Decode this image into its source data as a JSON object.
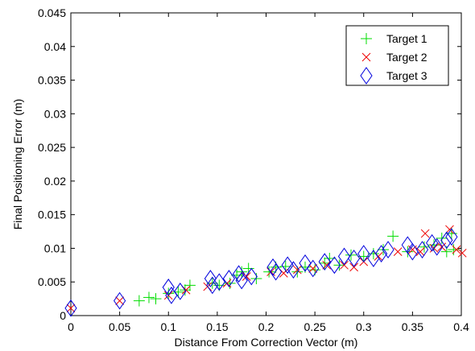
{
  "chart_data": {
    "type": "scatter",
    "xlabel": "Distance From Correction Vector (m)",
    "ylabel": "Final Positioning Error (m)",
    "xlim": [
      0,
      0.4
    ],
    "ylim": [
      0,
      0.045
    ],
    "x_ticks": [
      "0",
      "0.05",
      "0.1",
      "0.15",
      "0.2",
      "0.25",
      "0.3",
      "0.35",
      "0.4"
    ],
    "y_ticks": [
      "0",
      "0.005",
      "0.01",
      "0.015",
      "0.02",
      "0.025",
      "0.03",
      "0.035",
      "0.04",
      "0.045"
    ],
    "grid": false,
    "legend_position": "top-right",
    "series": [
      {
        "name": "Target 1",
        "marker": "plus",
        "color": "#00dd00",
        "points": [
          [
            0.07,
            0.0022
          ],
          [
            0.08,
            0.0027
          ],
          [
            0.087,
            0.0025
          ],
          [
            0.1,
            0.0033
          ],
          [
            0.11,
            0.0035
          ],
          [
            0.117,
            0.0038
          ],
          [
            0.122,
            0.0045
          ],
          [
            0.145,
            0.0048
          ],
          [
            0.152,
            0.0045
          ],
          [
            0.163,
            0.0048
          ],
          [
            0.17,
            0.006
          ],
          [
            0.175,
            0.0065
          ],
          [
            0.182,
            0.007
          ],
          [
            0.19,
            0.0055
          ],
          [
            0.203,
            0.0065
          ],
          [
            0.21,
            0.0072
          ],
          [
            0.22,
            0.0073
          ],
          [
            0.232,
            0.0065
          ],
          [
            0.24,
            0.0072
          ],
          [
            0.25,
            0.0068
          ],
          [
            0.26,
            0.0078
          ],
          [
            0.265,
            0.0085
          ],
          [
            0.275,
            0.0075
          ],
          [
            0.287,
            0.009
          ],
          [
            0.3,
            0.0088
          ],
          [
            0.31,
            0.0092
          ],
          [
            0.32,
            0.0098
          ],
          [
            0.33,
            0.0118
          ],
          [
            0.345,
            0.0095
          ],
          [
            0.362,
            0.0102
          ],
          [
            0.372,
            0.0105
          ],
          [
            0.38,
            0.0115
          ],
          [
            0.39,
            0.0122
          ],
          [
            0.385,
            0.0095
          ],
          [
            0.392,
            0.0098
          ]
        ]
      },
      {
        "name": "Target 2",
        "marker": "x",
        "color": "#ee0000",
        "points": [
          [
            0.0,
            0.0011
          ],
          [
            0.05,
            0.0022
          ],
          [
            0.1,
            0.003
          ],
          [
            0.118,
            0.0038
          ],
          [
            0.14,
            0.0043
          ],
          [
            0.16,
            0.0048
          ],
          [
            0.18,
            0.0058
          ],
          [
            0.205,
            0.0065
          ],
          [
            0.218,
            0.0063
          ],
          [
            0.232,
            0.0068
          ],
          [
            0.248,
            0.007
          ],
          [
            0.262,
            0.0075
          ],
          [
            0.28,
            0.0075
          ],
          [
            0.29,
            0.0072
          ],
          [
            0.3,
            0.008
          ],
          [
            0.315,
            0.0088
          ],
          [
            0.335,
            0.0095
          ],
          [
            0.35,
            0.0098
          ],
          [
            0.358,
            0.0095
          ],
          [
            0.363,
            0.0122
          ],
          [
            0.372,
            0.01
          ],
          [
            0.38,
            0.0102
          ],
          [
            0.388,
            0.0128
          ],
          [
            0.395,
            0.0098
          ],
          [
            0.401,
            0.0093
          ]
        ]
      },
      {
        "name": "Target 3",
        "marker": "diamond",
        "color": "#0000dd",
        "points": [
          [
            0.0,
            0.0011
          ],
          [
            0.05,
            0.0022
          ],
          [
            0.1,
            0.0042
          ],
          [
            0.103,
            0.003
          ],
          [
            0.112,
            0.0036
          ],
          [
            0.143,
            0.0055
          ],
          [
            0.145,
            0.0045
          ],
          [
            0.152,
            0.005
          ],
          [
            0.162,
            0.0055
          ],
          [
            0.172,
            0.0062
          ],
          [
            0.175,
            0.0052
          ],
          [
            0.185,
            0.0058
          ],
          [
            0.207,
            0.0072
          ],
          [
            0.21,
            0.0065
          ],
          [
            0.222,
            0.0075
          ],
          [
            0.228,
            0.0068
          ],
          [
            0.24,
            0.0078
          ],
          [
            0.248,
            0.007
          ],
          [
            0.26,
            0.008
          ],
          [
            0.27,
            0.0075
          ],
          [
            0.28,
            0.0088
          ],
          [
            0.29,
            0.0085
          ],
          [
            0.3,
            0.0092
          ],
          [
            0.31,
            0.0085
          ],
          [
            0.318,
            0.0092
          ],
          [
            0.325,
            0.0098
          ],
          [
            0.345,
            0.0105
          ],
          [
            0.35,
            0.0095
          ],
          [
            0.36,
            0.0098
          ],
          [
            0.37,
            0.0108
          ],
          [
            0.375,
            0.0102
          ],
          [
            0.385,
            0.0112
          ],
          [
            0.39,
            0.0117
          ]
        ]
      }
    ]
  }
}
